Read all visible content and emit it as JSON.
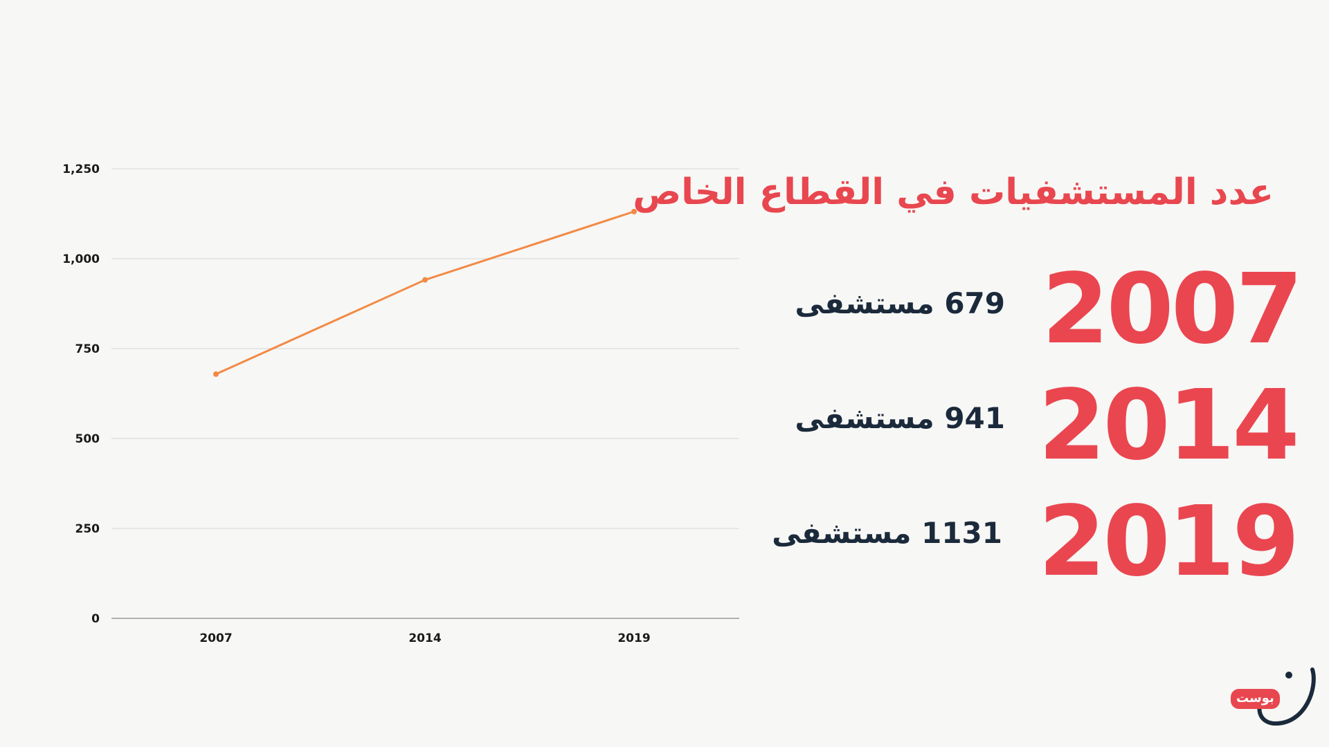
{
  "headline": "عدد المستشفيات في القطاع الخاص",
  "entries": [
    {
      "year": "2007",
      "count_text": "679 مستشفى"
    },
    {
      "year": "2014",
      "count_text": "941 مستشفى"
    },
    {
      "year": "2019",
      "count_text": "1131 مستشفى"
    }
  ],
  "logo": {
    "badge_text": "بوست"
  },
  "colors": {
    "background": "#f7f7f5",
    "line": "#f28a45",
    "accent": "#ea4650",
    "text_dark": "#1b2a3b",
    "grid": "#d6d6d6"
  },
  "chart_data": {
    "type": "line",
    "categories": [
      "2007",
      "2014",
      "2019"
    ],
    "series": [
      {
        "values": [
          679,
          941,
          1131
        ]
      }
    ],
    "ylim": [
      0,
      1250
    ],
    "yticks": [
      0,
      250,
      500,
      750,
      1000,
      1250
    ],
    "ytick_labels": [
      "0",
      "250",
      "500",
      "750",
      "1,000",
      "1,250"
    ],
    "grid": true,
    "title": "",
    "xlabel": "",
    "ylabel": ""
  }
}
